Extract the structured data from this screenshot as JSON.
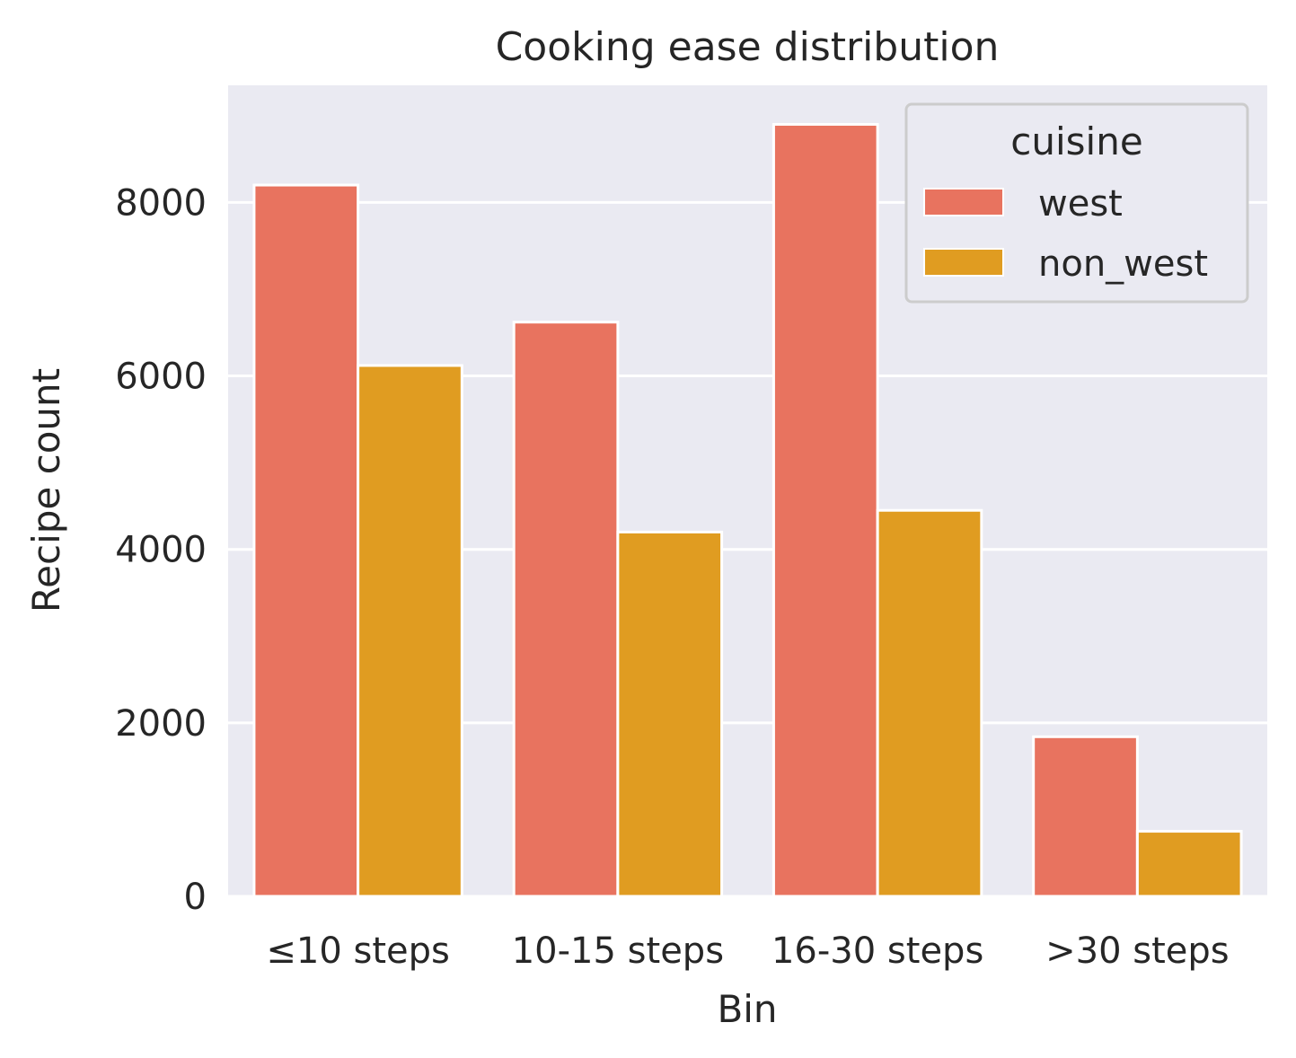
{
  "chart_data": {
    "type": "bar",
    "title": "Cooking ease distribution",
    "xlabel": "Bin",
    "ylabel": "Recipe count",
    "categories": [
      "≤10 steps",
      "10-15 steps",
      "16-30 steps",
      ">30 steps"
    ],
    "series": [
      {
        "name": "west",
        "color": "#E8735F",
        "values": [
          8200,
          6620,
          8900,
          1840
        ]
      },
      {
        "name": "non_west",
        "color": "#E09C21",
        "values": [
          6120,
          4200,
          4450,
          750
        ]
      }
    ],
    "ylim": [
      0,
      9350
    ],
    "yticks": [
      0,
      2000,
      4000,
      6000,
      8000
    ],
    "grid": true,
    "legend": {
      "title": "cuisine",
      "position": "top-right"
    },
    "background": "#EAEAF2"
  }
}
